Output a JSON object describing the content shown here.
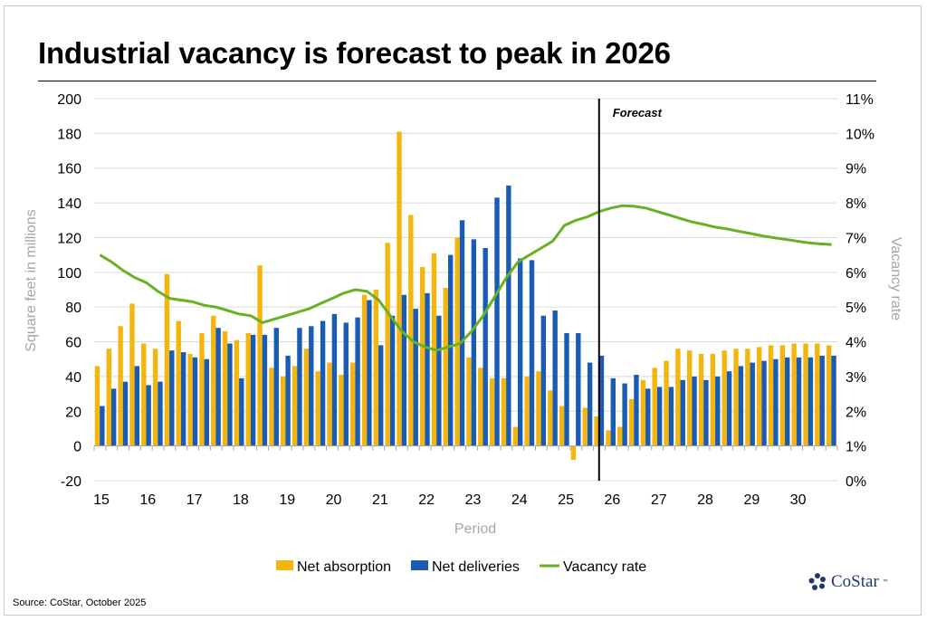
{
  "title": "Industrial vacancy is forecast to peak in 2026",
  "source": "Source: CoStar, October 2025",
  "brand": {
    "name": "CoStar",
    "tm": "™"
  },
  "colors": {
    "absorption": "#f5b50f",
    "deliveries": "#1a5cb4",
    "vacancy": "#6ab023",
    "grid": "#d9d9d9",
    "axis_text": "#000000",
    "axis_title": "#a6a6a6"
  },
  "chart_data": {
    "type": "bar",
    "title": "Industrial vacancy is forecast to peak in 2026",
    "xlabel": "Period",
    "ylabel": "Square feet in millions",
    "y2label": "Vacancy rate",
    "ylim": [
      -20,
      200
    ],
    "yticks": [
      -20,
      0,
      20,
      40,
      60,
      80,
      100,
      120,
      140,
      160,
      180,
      200
    ],
    "y2lim": [
      0,
      11
    ],
    "y2ticks": [
      "0%",
      "1%",
      "2%",
      "3%",
      "4%",
      "5%",
      "6%",
      "7%",
      "8%",
      "9%",
      "10%",
      "11%"
    ],
    "xticks": [
      "15",
      "16",
      "17",
      "18",
      "19",
      "20",
      "21",
      "22",
      "23",
      "24",
      "25",
      "26",
      "27",
      "28",
      "29",
      "30"
    ],
    "forecast_label": "Forecast",
    "forecast_start_index": 43,
    "categories": [
      "15Q1",
      "15Q2",
      "15Q3",
      "15Q4",
      "16Q1",
      "16Q2",
      "16Q3",
      "16Q4",
      "17Q1",
      "17Q2",
      "17Q3",
      "17Q4",
      "18Q1",
      "18Q2",
      "18Q3",
      "18Q4",
      "19Q1",
      "19Q2",
      "19Q3",
      "19Q4",
      "20Q1",
      "20Q2",
      "20Q3",
      "20Q4",
      "21Q1",
      "21Q2",
      "21Q3",
      "21Q4",
      "22Q1",
      "22Q2",
      "22Q3",
      "22Q4",
      "23Q1",
      "23Q2",
      "23Q3",
      "23Q4",
      "24Q1",
      "24Q2",
      "24Q3",
      "24Q4",
      "25Q1",
      "25Q2",
      "25Q3",
      "25Q4",
      "26Q1",
      "26Q2",
      "26Q3",
      "26Q4",
      "27Q1",
      "27Q2",
      "27Q3",
      "27Q4",
      "28Q1",
      "28Q2",
      "28Q3",
      "28Q4",
      "29Q1",
      "29Q2",
      "29Q3",
      "29Q4",
      "30Q1",
      "30Q2",
      "30Q3",
      "30Q4"
    ],
    "series": [
      {
        "name": "Net absorption",
        "kind": "bar",
        "values": [
          46,
          56,
          69,
          82,
          59,
          56,
          99,
          72,
          53,
          65,
          75,
          66,
          61,
          65,
          104,
          45,
          40,
          46,
          56,
          43,
          48,
          41,
          48,
          87,
          90,
          117,
          181,
          133,
          103,
          111,
          91,
          120,
          51,
          45,
          39,
          39,
          11,
          40,
          43,
          32,
          23,
          -8,
          22,
          17,
          9,
          11,
          27,
          38,
          45,
          49,
          56,
          55,
          53,
          53,
          55,
          56,
          56,
          57,
          58,
          58,
          59,
          59,
          59,
          58
        ]
      },
      {
        "name": "Net deliveries",
        "kind": "bar",
        "values": [
          23,
          33,
          37,
          46,
          35,
          37,
          55,
          54,
          51,
          50,
          68,
          59,
          39,
          64,
          64,
          68,
          52,
          68,
          69,
          72,
          76,
          71,
          74,
          84,
          58,
          75,
          87,
          79,
          88,
          75,
          110,
          130,
          119,
          114,
          143,
          150,
          108,
          107,
          75,
          78,
          65,
          65,
          48,
          52,
          39,
          36,
          41,
          33,
          34,
          34,
          38,
          40,
          38,
          40,
          43,
          46,
          48,
          49,
          50,
          51,
          51,
          51,
          52,
          52
        ]
      },
      {
        "name": "Vacancy rate",
        "kind": "line",
        "axis": "right",
        "values": [
          6.5,
          6.3,
          6.05,
          5.85,
          5.7,
          5.45,
          5.25,
          5.2,
          5.15,
          5.05,
          5.0,
          4.9,
          4.8,
          4.75,
          4.55,
          4.65,
          4.75,
          4.85,
          4.95,
          5.1,
          5.25,
          5.4,
          5.5,
          5.45,
          5.2,
          4.75,
          4.3,
          4.0,
          3.85,
          3.75,
          3.85,
          3.95,
          4.3,
          4.75,
          5.3,
          5.85,
          6.3,
          6.5,
          6.7,
          6.9,
          7.35,
          7.5,
          7.6,
          7.75,
          7.85,
          7.92,
          7.9,
          7.85,
          7.75,
          7.65,
          7.55,
          7.45,
          7.38,
          7.3,
          7.25,
          7.18,
          7.12,
          7.05,
          7.0,
          6.95,
          6.9,
          6.85,
          6.82,
          6.8
        ]
      }
    ]
  }
}
